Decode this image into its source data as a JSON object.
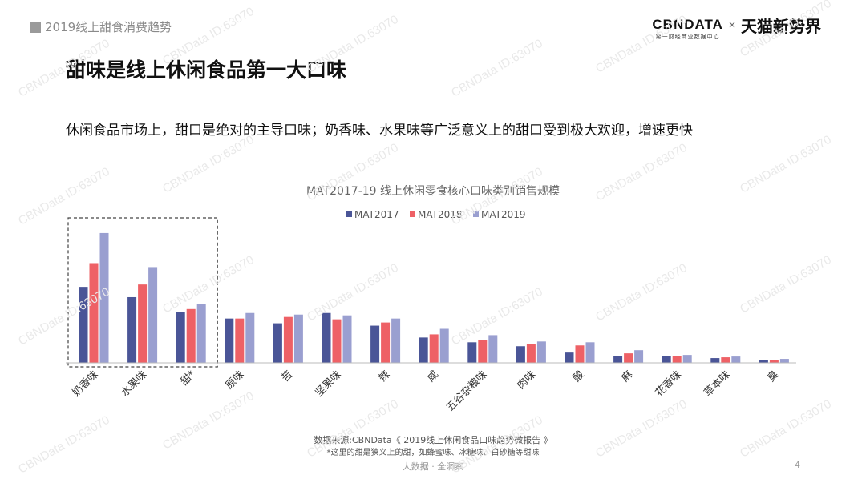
{
  "header": {
    "section_title": "2019线上甜食消费趋势"
  },
  "logo": {
    "cbn_main": "CBΝDATA",
    "cbn_sub": "第一财经商业数据中心",
    "x": "×",
    "tmall": "天猫新势界"
  },
  "title": "甜味是线上休闲食品第一大口味",
  "subtitle": "休闲食品市场上，甜口是绝对的主导口味；奶香味、水果味等广泛意义上的甜口受到极大欢迎，增速更快",
  "watermark": "CBNData ID:63070",
  "source_line1": "数据来源:CBNData《 2019线上休闲食品口味趋势微报告 》",
  "source_line2": "*这里的甜是狭义上的甜，如蜂蜜味、冰糖味、白砂糖等甜味",
  "footer": "大数据 · 全洞察",
  "page_number": "4",
  "colors": {
    "MAT2017": "#4a5597",
    "MAT2018": "#ee6166",
    "MAT2019": "#9a9fd0",
    "highlight_box": "#444444"
  },
  "chart_data": {
    "type": "bar",
    "title": "MAT2017-19 线上休闲零食核心口味类别销售规模",
    "xlabel": "",
    "ylabel": "",
    "ylim": [
      0,
      170
    ],
    "grid": false,
    "legend": "top-center",
    "categories": [
      "奶香味",
      "水果味",
      "甜*",
      "原味",
      "苦",
      "坚果味",
      "辣",
      "咸",
      "五谷杂粮味",
      "肉味",
      "酸",
      "麻",
      "花香味",
      "草本味",
      "臭"
    ],
    "highlighted_categories": [
      "奶香味",
      "水果味",
      "甜*"
    ],
    "series": [
      {
        "name": "MAT2017",
        "values": [
          96,
          83,
          64,
          56,
          50,
          63,
          47,
          32,
          26,
          21,
          13,
          9,
          9,
          6,
          4
        ]
      },
      {
        "name": "MAT2018",
        "values": [
          126,
          99,
          68,
          56,
          58,
          55,
          51,
          36,
          29,
          24,
          22,
          12,
          9,
          7,
          4
        ]
      },
      {
        "name": "MAT2019",
        "values": [
          164,
          121,
          74,
          63,
          61,
          60,
          56,
          43,
          35,
          27,
          26,
          16,
          10,
          8,
          5
        ]
      }
    ]
  }
}
